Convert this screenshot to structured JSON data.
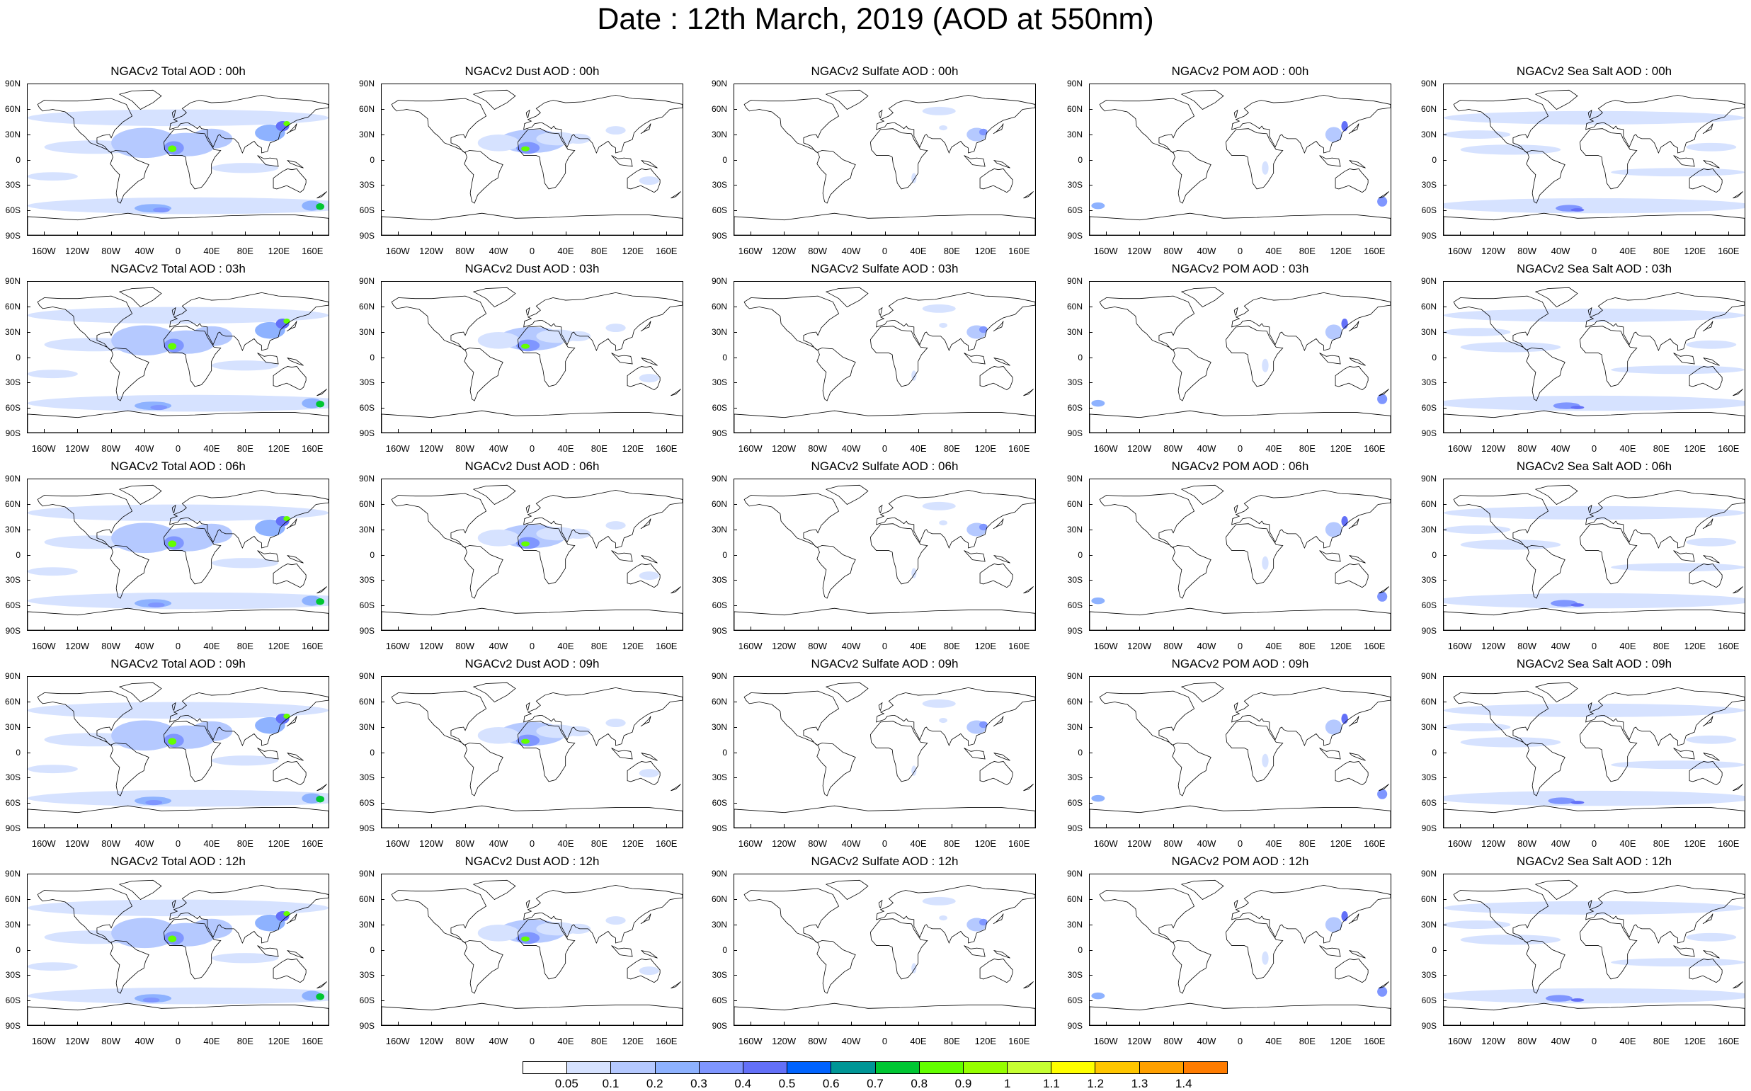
{
  "page": {
    "title": "Date : 12th March, 2019 (AOD at 550nm)"
  },
  "axes": {
    "lat_labels": [
      "90N",
      "60N",
      "30N",
      "0",
      "30S",
      "60S",
      "90S"
    ],
    "lon_labels": [
      "160W",
      "120W",
      "80W",
      "40W",
      "0",
      "40E",
      "80E",
      "120E",
      "160E"
    ]
  },
  "panels": [
    [
      {
        "title": "NGACv2 Total AOD : 00h",
        "species": "total",
        "hour": "00h"
      },
      {
        "title": "NGACv2 Dust AOD : 00h",
        "species": "dust",
        "hour": "00h"
      },
      {
        "title": "NGACv2 Sulfate AOD : 00h",
        "species": "sulfate",
        "hour": "00h"
      },
      {
        "title": "NGACv2 POM AOD : 00h",
        "species": "pom",
        "hour": "00h"
      },
      {
        "title": "NGACv2 Sea Salt AOD : 00h",
        "species": "seasalt",
        "hour": "00h"
      }
    ],
    [
      {
        "title": "NGACv2 Total AOD : 03h",
        "species": "total",
        "hour": "03h"
      },
      {
        "title": "NGACv2 Dust AOD : 03h",
        "species": "dust",
        "hour": "03h"
      },
      {
        "title": "NGACv2 Sulfate AOD : 03h",
        "species": "sulfate",
        "hour": "03h"
      },
      {
        "title": "NGACv2 POM AOD : 03h",
        "species": "pom",
        "hour": "03h"
      },
      {
        "title": "NGACv2 Sea Salt AOD : 03h",
        "species": "seasalt",
        "hour": "03h"
      }
    ],
    [
      {
        "title": "NGACv2 Total AOD : 06h",
        "species": "total",
        "hour": "06h"
      },
      {
        "title": "NGACv2 Dust AOD : 06h",
        "species": "dust",
        "hour": "06h"
      },
      {
        "title": "NGACv2 Sulfate AOD : 06h",
        "species": "sulfate",
        "hour": "06h"
      },
      {
        "title": "NGACv2 POM AOD : 06h",
        "species": "pom",
        "hour": "06h"
      },
      {
        "title": "NGACv2 Sea Salt AOD : 06h",
        "species": "seasalt",
        "hour": "06h"
      }
    ],
    [
      {
        "title": "NGACv2 Total AOD : 09h",
        "species": "total",
        "hour": "09h"
      },
      {
        "title": "NGACv2 Dust AOD : 09h",
        "species": "dust",
        "hour": "09h"
      },
      {
        "title": "NGACv2 Sulfate AOD : 09h",
        "species": "sulfate",
        "hour": "09h"
      },
      {
        "title": "NGACv2 POM AOD : 09h",
        "species": "pom",
        "hour": "09h"
      },
      {
        "title": "NGACv2 Sea Salt  AOD : 09h",
        "species": "seasalt",
        "hour": "09h"
      }
    ],
    [
      {
        "title": "NGACv2 Total AOD :  12h",
        "species": "total",
        "hour": "12h"
      },
      {
        "title": "NGACv2 Dust AOD : 12h",
        "species": "dust",
        "hour": "12h"
      },
      {
        "title": "NGACv2 Sulfate AOD : 12h",
        "species": "sulfate",
        "hour": "12h"
      },
      {
        "title": "NGACv2 POM  AOD : 12h",
        "species": "pom",
        "hour": "12h"
      },
      {
        "title": "NGACv2 Sea Salt AOD : 12h",
        "species": "seasalt",
        "hour": "12h"
      }
    ]
  ],
  "colorbar": {
    "labels": [
      "0.05",
      "0.1",
      "0.2",
      "0.3",
      "0.4",
      "0.5",
      "0.6",
      "0.7",
      "0.8",
      "0.9",
      "1",
      "1.1",
      "1.2",
      "1.3",
      "1.4"
    ],
    "colors": [
      "#ffffff",
      "#d6e2ff",
      "#b5c9ff",
      "#8eb2ff",
      "#7f96ff",
      "#6370f8",
      "#0063ff",
      "#009696",
      "#00c633",
      "#63ff00",
      "#96ff00",
      "#c6ff33",
      "#ffff00",
      "#ffc600",
      "#ffa000",
      "#ff7c00",
      "#ff1900"
    ]
  }
}
